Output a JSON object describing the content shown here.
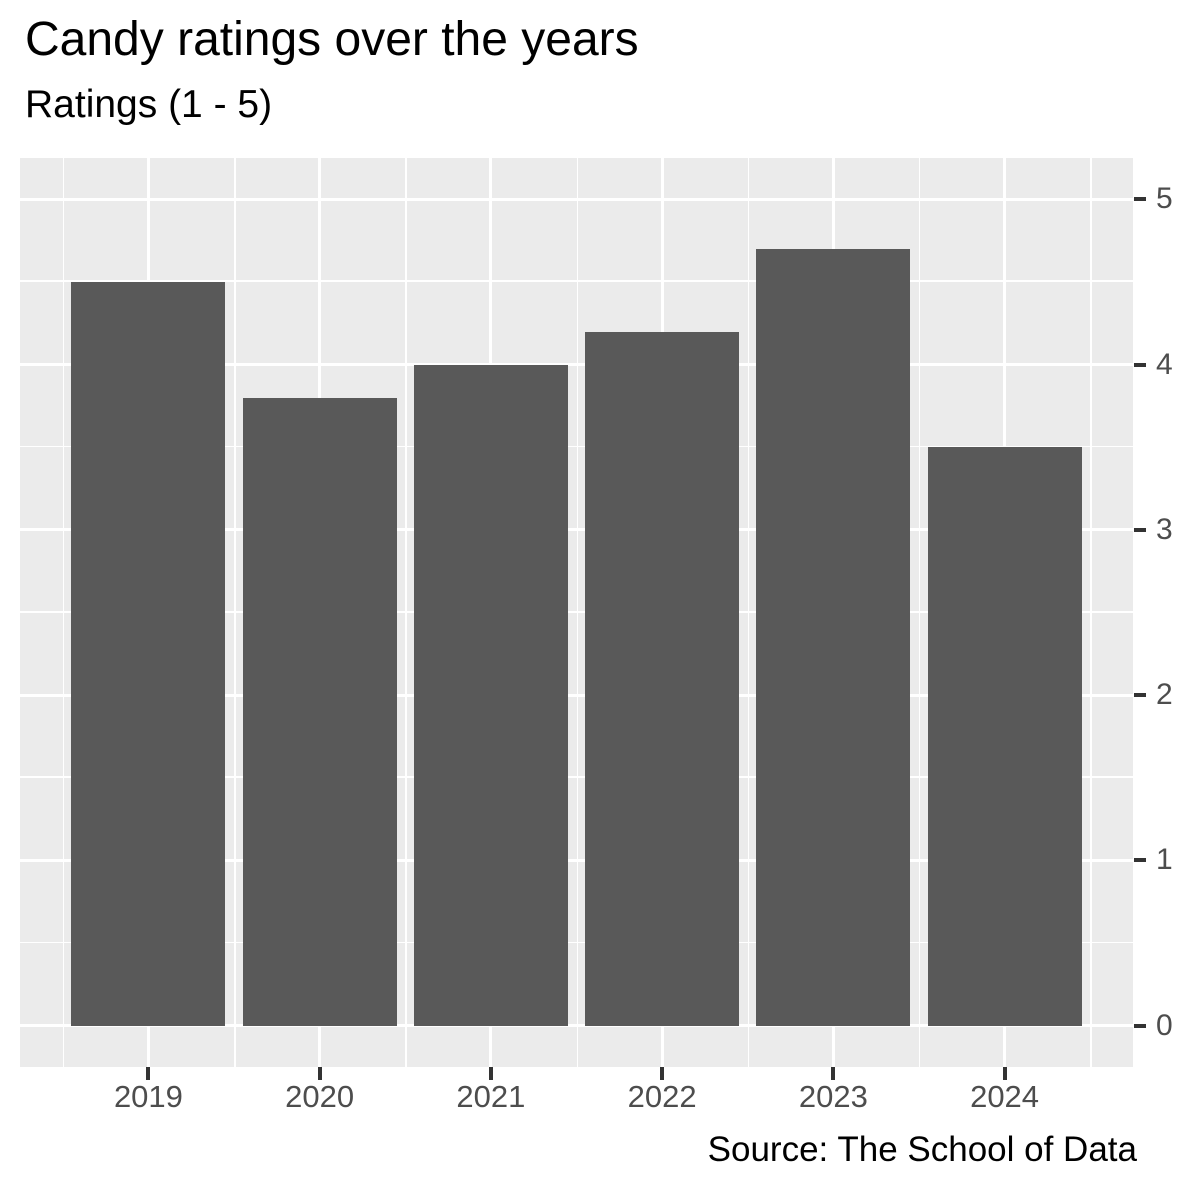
{
  "chart_data": {
    "type": "bar",
    "title": "Candy ratings over the years",
    "subtitle": "Ratings (1 - 5)",
    "caption": "Source: The School of Data",
    "categories": [
      "2019",
      "2020",
      "2021",
      "2022",
      "2023",
      "2024"
    ],
    "values": [
      4.5,
      3.8,
      4.0,
      4.2,
      4.7,
      3.5
    ],
    "xlabel": "",
    "ylabel": "",
    "ylim": [
      0,
      5
    ],
    "yticks": [
      0,
      1,
      2,
      3,
      4,
      5
    ],
    "yaxis_side": "right",
    "legend": "none",
    "grid": "major and minor white gridlines on grey panel",
    "style": {
      "bar_color": "#595959",
      "panel_bg": "#EBEBEB",
      "grid_color": "#FFFFFF",
      "axis_text_color": "#4D4D4D",
      "tick_color": "#333333",
      "title_color": "#000000"
    }
  }
}
